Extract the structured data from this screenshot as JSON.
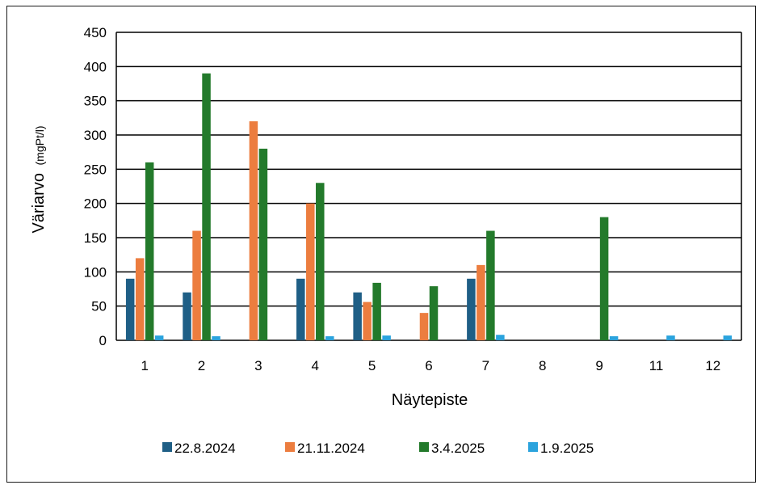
{
  "chart_data": {
    "type": "bar",
    "xlabel": "Näytepiste",
    "ylabel": "Väriarvo",
    "ylabel_unit": "(mgPt/l)",
    "ylim": [
      0,
      450
    ],
    "yticks": [
      0,
      50,
      100,
      150,
      200,
      250,
      300,
      350,
      400,
      450
    ],
    "grid": true,
    "legend_position": "bottom",
    "categories": [
      "1",
      "2",
      "3",
      "4",
      "5",
      "6",
      "7",
      "8",
      "9",
      "11",
      "12"
    ],
    "series": [
      {
        "name": "22.8.2024",
        "color": "#1f5f86",
        "values": [
          90,
          70,
          0,
          90,
          70,
          0,
          90,
          0,
          0,
          0,
          0
        ]
      },
      {
        "name": "21.11.2024",
        "color": "#ec7d3f",
        "values": [
          120,
          160,
          320,
          200,
          56,
          40,
          110,
          0,
          0,
          0,
          0
        ]
      },
      {
        "name": "3.4.2025",
        "color": "#237a2b",
        "values": [
          260,
          390,
          280,
          230,
          84,
          79,
          160,
          0,
          180,
          0,
          0
        ]
      },
      {
        "name": "1.9.2025",
        "color": "#2ba3dd",
        "values": [
          7,
          6,
          0,
          6,
          7,
          0,
          8,
          0,
          6,
          7,
          7
        ]
      }
    ]
  }
}
